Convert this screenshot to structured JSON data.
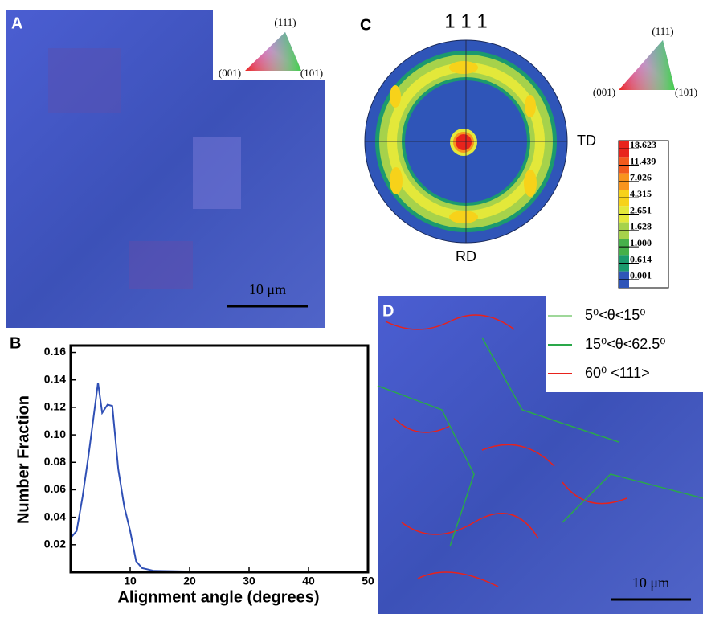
{
  "panel_a": {
    "label": "A",
    "scale": "10 μm",
    "triangle": [
      "(111)",
      "(001)",
      "(101)"
    ]
  },
  "chart_data": {
    "type": "line",
    "panel_label": "B",
    "x_label": "Alignment angle (degrees)",
    "y_label": "Number Fraction",
    "x": [
      0,
      1,
      2,
      3,
      4,
      4.6,
      5.3,
      6.2,
      7,
      8,
      9,
      10,
      11,
      12,
      14,
      20,
      30,
      40,
      50
    ],
    "values": [
      0.025,
      0.03,
      0.055,
      0.085,
      0.118,
      0.138,
      0.116,
      0.122,
      0.121,
      0.075,
      0.048,
      0.03,
      0.008,
      0.003,
      0.001,
      0.0005,
      0.0003,
      0.0002,
      0.0001
    ],
    "color": "#2f4fb5",
    "xlim": [
      0,
      50
    ],
    "ylim": [
      0,
      0.165
    ],
    "xticks": [
      10,
      20,
      30,
      40,
      50
    ],
    "yticks": [
      0.02,
      0.04,
      0.06,
      0.08,
      {
        "value": 0.1,
        "label": "0.10"
      },
      0.12,
      0.14,
      0.16
    ]
  },
  "panel_c": {
    "label": "C",
    "title": "1 1 1",
    "td": "TD",
    "rd": "RD",
    "triangle": [
      "(111)",
      "(001)",
      "(101)"
    ],
    "colorbar": [
      {
        "value": 18.623,
        "color": "#e8241c"
      },
      {
        "value": 11.439,
        "color": "#f25a1d"
      },
      {
        "value": 7.026,
        "color": "#f8941d"
      },
      {
        "value": 4.315,
        "color": "#f7d21a"
      },
      {
        "value": 2.651,
        "color": "#e3e83a"
      },
      {
        "value": 1.628,
        "color": "#a6d24b"
      },
      {
        "value": {
          "value": 1,
          "label": "1.000"
        },
        "color": "#46b04a"
      },
      {
        "value": 0.614,
        "color": "#1b9a6e"
      },
      {
        "value": 0.001,
        "color": "#2f55b8"
      }
    ]
  },
  "panel_d": {
    "label": "D",
    "scale": "10 μm",
    "legend": [
      {
        "text": "5⁰<θ<15⁰",
        "color": "#9fd89a"
      },
      {
        "text": "15⁰<θ<62.5⁰",
        "color": "#2aa84a"
      },
      {
        "text": "60⁰ <111>",
        "color": "#e8221c"
      }
    ]
  }
}
